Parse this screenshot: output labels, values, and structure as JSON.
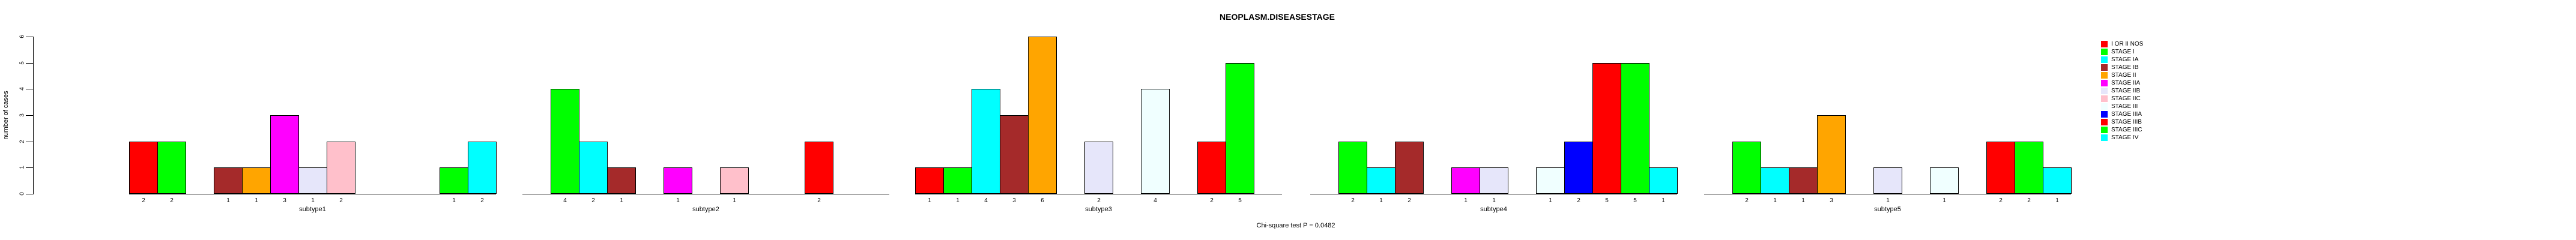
{
  "title": "NEOPLASM.DISEASESTAGE",
  "y_axis": {
    "label": "number of cases",
    "ticks": [
      0,
      1,
      2,
      3,
      4,
      5,
      6
    ]
  },
  "footer": "Chi-square test P = 0.0482",
  "chart_data": {
    "type": "bar",
    "title": "NEOPLASM.DISEASESTAGE",
    "ylabel": "number of cases",
    "ylim": [
      0,
      6
    ],
    "grid": false,
    "legend_position": "right",
    "bar_value_labels": true,
    "annotation": "Chi-square test P = 0.0482",
    "categories": [
      "subtype1",
      "subtype2",
      "subtype3",
      "subtype4",
      "subtype5"
    ],
    "series": [
      {
        "name": "I OR II NOS",
        "color": "#FF0000",
        "values": [
          2,
          0,
          1,
          0,
          0
        ]
      },
      {
        "name": "STAGE I",
        "color": "#00FF00",
        "values": [
          2,
          4,
          1,
          2,
          2
        ]
      },
      {
        "name": "STAGE IA",
        "color": "#00FFFF",
        "values": [
          0,
          2,
          4,
          1,
          1
        ]
      },
      {
        "name": "STAGE IB",
        "color": "#A52A2A",
        "values": [
          1,
          1,
          3,
          2,
          1
        ]
      },
      {
        "name": "STAGE II",
        "color": "#FFA500",
        "values": [
          1,
          0,
          6,
          0,
          3
        ]
      },
      {
        "name": "STAGE IIA",
        "color": "#FF00FF",
        "values": [
          3,
          1,
          0,
          1,
          0
        ]
      },
      {
        "name": "STAGE IIB",
        "color": "#E6E6FA",
        "values": [
          1,
          0,
          2,
          1,
          1
        ]
      },
      {
        "name": "STAGE IIC",
        "color": "#FFC0CB",
        "values": [
          2,
          1,
          0,
          0,
          0
        ]
      },
      {
        "name": "STAGE III",
        "color": "#F0FFFF",
        "values": [
          0,
          0,
          4,
          1,
          1
        ]
      },
      {
        "name": "STAGE IIIA",
        "color": "#0000FF",
        "values": [
          0,
          0,
          0,
          2,
          0
        ]
      },
      {
        "name": "STAGE IIIB",
        "color": "#FF0000",
        "values": [
          0,
          2,
          2,
          5,
          2
        ]
      },
      {
        "name": "STAGE IIIC",
        "color": "#00FF00",
        "values": [
          1,
          0,
          5,
          5,
          2
        ]
      },
      {
        "name": "STAGE IV",
        "color": "#00FFFF",
        "values": [
          2,
          0,
          0,
          1,
          1
        ]
      }
    ]
  }
}
